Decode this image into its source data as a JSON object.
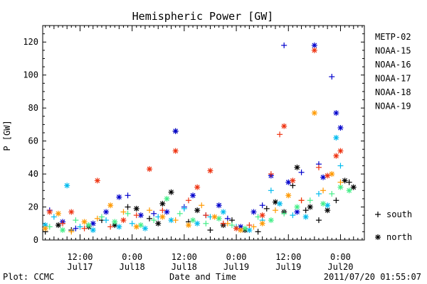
{
  "chart_data": {
    "type": "scatter",
    "title": "Hemispheric Power [GW]",
    "xlabel": "Date and Time",
    "ylabel": "P [GW]",
    "ylim": [
      0,
      130
    ],
    "y_ticks": [
      0,
      20,
      40,
      60,
      80,
      100,
      120
    ],
    "x_range_hours": [
      -20.6,
      53.5
    ],
    "x_ticks": [
      {
        "h": -12,
        "label1": "12:00",
        "label2": "Jul17"
      },
      {
        "h": 0,
        "label1": "0:00",
        "label2": "Jul18"
      },
      {
        "h": 12,
        "label1": "12:00",
        "label2": "Jul18"
      },
      {
        "h": 24,
        "label1": "0:00",
        "label2": "Jul19"
      },
      {
        "h": 36,
        "label1": "12:00",
        "label2": "Jul19"
      },
      {
        "h": 48,
        "label1": "0:00",
        "label2": "Jul20"
      }
    ],
    "grid": false,
    "legend_position": "right",
    "marker_legend": [
      {
        "symbol": "+",
        "label": "south"
      },
      {
        "symbol": "*",
        "label": "north"
      }
    ],
    "series": [
      {
        "name": "METP-02",
        "color": "#000000",
        "points": [
          [
            -20,
            5,
            "+"
          ],
          [
            -17,
            9,
            "*"
          ],
          [
            -14,
            6,
            "+"
          ],
          [
            -10,
            8,
            "*"
          ],
          [
            -7,
            12,
            "+"
          ],
          [
            -4,
            9,
            "*"
          ],
          [
            -1,
            20,
            "+"
          ],
          [
            1,
            19,
            "*"
          ],
          [
            4,
            13,
            "+"
          ],
          [
            6,
            10,
            "*"
          ],
          [
            7,
            22,
            "*"
          ],
          [
            9,
            29,
            "*"
          ],
          [
            10,
            66,
            "+"
          ],
          [
            13,
            11,
            "+"
          ],
          [
            15,
            18,
            "*"
          ],
          [
            18,
            6,
            "+"
          ],
          [
            21,
            9,
            "*"
          ],
          [
            23,
            12,
            "+"
          ],
          [
            26,
            6,
            "*"
          ],
          [
            29,
            5,
            "+"
          ],
          [
            31,
            19,
            "+"
          ],
          [
            33,
            23,
            "*"
          ],
          [
            35,
            17,
            "*"
          ],
          [
            37,
            33,
            "+"
          ],
          [
            38,
            44,
            "*"
          ],
          [
            40,
            18,
            "+"
          ],
          [
            41,
            20,
            "*"
          ],
          [
            43,
            12,
            "+"
          ],
          [
            45,
            18,
            "*"
          ],
          [
            47,
            24,
            "+"
          ],
          [
            49,
            36,
            "*"
          ],
          [
            50,
            35,
            "+"
          ],
          [
            51,
            32,
            "*"
          ]
        ]
      },
      {
        "name": "NOAA-15",
        "color": "#0000cc",
        "points": [
          [
            -19,
            18,
            "+"
          ],
          [
            -16,
            11,
            "*"
          ],
          [
            -13,
            7,
            "+"
          ],
          [
            -9,
            10,
            "*"
          ],
          [
            -6,
            17,
            "*"
          ],
          [
            -3,
            26,
            "*"
          ],
          [
            -1,
            27,
            "+"
          ],
          [
            2,
            15,
            "*"
          ],
          [
            5,
            16,
            "+"
          ],
          [
            8,
            17,
            "*"
          ],
          [
            10,
            66,
            "*"
          ],
          [
            12,
            20,
            "+"
          ],
          [
            14,
            27,
            "*"
          ],
          [
            17,
            15,
            "+"
          ],
          [
            20,
            21,
            "*"
          ],
          [
            22,
            13,
            "+"
          ],
          [
            25,
            8,
            "*"
          ],
          [
            28,
            17,
            "*"
          ],
          [
            30,
            21,
            "+"
          ],
          [
            32,
            39,
            "*"
          ],
          [
            35,
            118,
            "+"
          ],
          [
            36,
            35,
            "*"
          ],
          [
            38,
            17,
            "*"
          ],
          [
            39,
            41,
            "+"
          ],
          [
            42,
            118,
            "*"
          ],
          [
            43,
            46,
            "+"
          ],
          [
            44,
            38,
            "*"
          ],
          [
            46,
            99,
            "+"
          ],
          [
            47,
            77,
            "*"
          ],
          [
            48,
            68,
            "*"
          ]
        ]
      },
      {
        "name": "NOAA-16",
        "color": "#00bbee",
        "points": [
          [
            -20,
            9,
            "*"
          ],
          [
            -18,
            14,
            "+"
          ],
          [
            -15,
            33,
            "*"
          ],
          [
            -12,
            8,
            "+"
          ],
          [
            -9,
            6,
            "*"
          ],
          [
            -6,
            12,
            "+"
          ],
          [
            -3,
            8,
            "*"
          ],
          [
            0,
            10,
            "+"
          ],
          [
            3,
            7,
            "*"
          ],
          [
            6,
            14,
            "+"
          ],
          [
            9,
            12,
            "*"
          ],
          [
            12,
            19,
            "+"
          ],
          [
            15,
            10,
            "*"
          ],
          [
            18,
            14,
            "+"
          ],
          [
            21,
            17,
            "*"
          ],
          [
            24,
            8,
            "+"
          ],
          [
            27,
            6,
            "*"
          ],
          [
            30,
            12,
            "+"
          ],
          [
            32,
            30,
            "+"
          ],
          [
            34,
            22,
            "*"
          ],
          [
            37,
            15,
            "+"
          ],
          [
            40,
            14,
            "*"
          ],
          [
            43,
            28,
            "+"
          ],
          [
            45,
            21,
            "*"
          ],
          [
            47,
            62,
            "*"
          ],
          [
            48,
            45,
            "+"
          ]
        ]
      },
      {
        "name": "NOAA-17",
        "color": "#44ee88",
        "points": [
          [
            -19,
            8,
            "+"
          ],
          [
            -16,
            6,
            "*"
          ],
          [
            -13,
            12,
            "+"
          ],
          [
            -10,
            9,
            "*"
          ],
          [
            -7,
            14,
            "+"
          ],
          [
            -4,
            11,
            "*"
          ],
          [
            -1,
            16,
            "+"
          ],
          [
            2,
            9,
            "*"
          ],
          [
            5,
            12,
            "+"
          ],
          [
            8,
            25,
            "*"
          ],
          [
            11,
            16,
            "+"
          ],
          [
            14,
            12,
            "*"
          ],
          [
            17,
            10,
            "+"
          ],
          [
            20,
            13,
            "*"
          ],
          [
            23,
            9,
            "+"
          ],
          [
            26,
            7,
            "*"
          ],
          [
            29,
            14,
            "+"
          ],
          [
            32,
            12,
            "*"
          ],
          [
            35,
            16,
            "+"
          ],
          [
            38,
            20,
            "*"
          ],
          [
            41,
            24,
            "+"
          ],
          [
            44,
            22,
            "*"
          ],
          [
            46,
            28,
            "+"
          ],
          [
            48,
            32,
            "*"
          ],
          [
            50,
            30,
            "*"
          ]
        ]
      },
      {
        "name": "NOAA-18",
        "color": "#ff9900",
        "points": [
          [
            -20,
            7,
            "*"
          ],
          [
            -17,
            16,
            "*"
          ],
          [
            -14,
            5,
            "+"
          ],
          [
            -11,
            11,
            "*"
          ],
          [
            -8,
            13,
            "+"
          ],
          [
            -5,
            21,
            "*"
          ],
          [
            -2,
            17,
            "+"
          ],
          [
            1,
            8,
            "*"
          ],
          [
            4,
            18,
            "+"
          ],
          [
            7,
            14,
            "*"
          ],
          [
            10,
            12,
            "+"
          ],
          [
            13,
            9,
            "*"
          ],
          [
            16,
            21,
            "+"
          ],
          [
            19,
            14,
            "*"
          ],
          [
            22,
            10,
            "+"
          ],
          [
            25,
            6,
            "*"
          ],
          [
            28,
            8,
            "+"
          ],
          [
            30,
            10,
            "*"
          ],
          [
            33,
            18,
            "+"
          ],
          [
            36,
            27,
            "*"
          ],
          [
            39,
            24,
            "+"
          ],
          [
            42,
            77,
            "*"
          ],
          [
            44,
            30,
            "+"
          ],
          [
            46,
            40,
            "*"
          ],
          [
            48,
            35,
            "+"
          ]
        ]
      },
      {
        "name": "NOAA-19",
        "color": "#ee3311",
        "points": [
          [
            -19,
            17,
            "*"
          ],
          [
            -16,
            10,
            "+"
          ],
          [
            -14,
            17,
            "*"
          ],
          [
            -11,
            7,
            "+"
          ],
          [
            -8,
            36,
            "*"
          ],
          [
            -5,
            8,
            "+"
          ],
          [
            -2,
            12,
            "*"
          ],
          [
            1,
            15,
            "+"
          ],
          [
            4,
            43,
            "*"
          ],
          [
            7,
            18,
            "+"
          ],
          [
            10,
            54,
            "*"
          ],
          [
            13,
            24,
            "+"
          ],
          [
            15,
            32,
            "*"
          ],
          [
            17,
            15,
            "+"
          ],
          [
            18,
            42,
            "*"
          ],
          [
            21,
            10,
            "+"
          ],
          [
            24,
            7,
            "*"
          ],
          [
            27,
            9,
            "+"
          ],
          [
            30,
            15,
            "*"
          ],
          [
            32,
            40,
            "+"
          ],
          [
            34,
            64,
            "+"
          ],
          [
            35,
            69,
            "*"
          ],
          [
            37,
            36,
            "*"
          ],
          [
            39,
            24,
            "+"
          ],
          [
            42,
            115,
            "*"
          ],
          [
            43,
            44,
            "+"
          ],
          [
            45,
            39,
            "*"
          ],
          [
            47,
            51,
            "*"
          ],
          [
            48,
            54,
            "*"
          ]
        ]
      }
    ]
  },
  "footer": {
    "left": "Plot: CCMC",
    "right": "2011/07/20 01:55:07"
  }
}
